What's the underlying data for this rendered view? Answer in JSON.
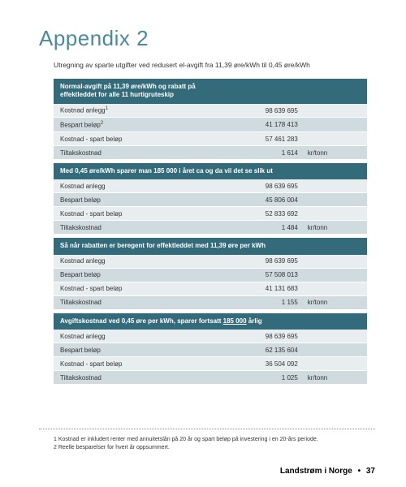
{
  "title": "Appendix 2",
  "subtitle": "Utregning av sparte utgifter ved redusert el-avgift fra 11,39 øre/kWh til 0,45 øre/kWh",
  "sections": [
    {
      "header_lines": [
        "Normal-avgift på 11,39 øre/kWh og rabatt på",
        "effektleddet for alle 11 hurtigruteskip"
      ],
      "rows": [
        {
          "label_html": "Kostnad anlegg<sup>1</sup>",
          "value": "98 639 695",
          "unit": "",
          "shade": "light"
        },
        {
          "label_html": "Bespart beløp<sup>2</sup>",
          "value": "41 178 413",
          "unit": "",
          "shade": "dark"
        },
        {
          "label_html": "Kostnad - spart beløp",
          "value": "57 461 283",
          "unit": "",
          "shade": "light"
        },
        {
          "label_html": "Tiltakskostnad",
          "value": "1 614",
          "unit": "kr/tonn",
          "shade": "dark"
        }
      ]
    },
    {
      "header_lines": [
        "Med 0,45 øre/kWh sparer man 185 000 i året ca og da vil det se slik ut"
      ],
      "rows": [
        {
          "label_html": "Kostnad anlegg",
          "value": "98 639 695",
          "unit": "",
          "shade": "light"
        },
        {
          "label_html": "Bespart beløp",
          "value": "45 806 004",
          "unit": "",
          "shade": "dark"
        },
        {
          "label_html": "Kostnad - spart beløp",
          "value": "52 833 692",
          "unit": "",
          "shade": "light"
        },
        {
          "label_html": "Tiltakskostnad",
          "value": "1 484",
          "unit": "kr/tonn",
          "shade": "dark"
        }
      ]
    },
    {
      "header_lines": [
        "Så når rabatten er beregent for effektleddet med 11,39 øre per kWh"
      ],
      "rows": [
        {
          "label_html": "Kostnad anlegg",
          "value": "98 639 695",
          "unit": "",
          "shade": "light"
        },
        {
          "label_html": "Bespart beløp",
          "value": "57 508 013",
          "unit": "",
          "shade": "dark"
        },
        {
          "label_html": "Kostnad - spart beløp",
          "value": "41 131 683",
          "unit": "",
          "shade": "light"
        },
        {
          "label_html": "Tiltakskostnad",
          "value": "1 155",
          "unit": "kr/tonn",
          "shade": "dark"
        }
      ]
    },
    {
      "header_html": "Avgiftskostnad ved 0,45 øre per kWh, sparer fortsatt <span class=\"underline\">185 000</span> årlig",
      "rows": [
        {
          "label_html": "Kostnad anlegg",
          "value": "98 639 695",
          "unit": "",
          "shade": "light"
        },
        {
          "label_html": "Bespart beløp",
          "value": "62 135 604",
          "unit": "",
          "shade": "dark"
        },
        {
          "label_html": "Kostnad - spart beløp",
          "value": "36 504 092",
          "unit": "",
          "shade": "light"
        },
        {
          "label_html": "Tiltakskostnad",
          "value": "1 025",
          "unit": "kr/tonn",
          "shade": "dark"
        }
      ]
    }
  ],
  "footnotes": [
    "1  Kostnad er inkludert renter med annuitetslån på 20 år og spart beløp på investering i en 20-års periode.",
    "2  Reelle besparelser for hvert år oppsummert."
  ],
  "footer": {
    "text": "Landstrøm i Norge",
    "page": "37"
  },
  "colors": {
    "title": "#4a8a9a",
    "header_bg": "#336b7a",
    "row_light": "#e8eef0",
    "row_dark": "#cfdbde"
  }
}
